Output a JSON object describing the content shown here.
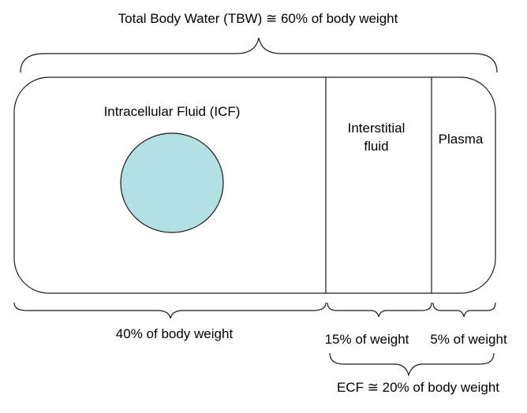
{
  "title": "Total Body Water (TBW) ≅ 60% of body weight",
  "compartments": {
    "icf": {
      "label": "Intracellular Fluid (ICF)",
      "weight_label": "40% of body weight"
    },
    "interstitial": {
      "label_line1": "Interstitial",
      "label_line2": "fluid",
      "weight_label": "15% of weight"
    },
    "plasma": {
      "label": "Plasma",
      "weight_label": "5% of weight"
    }
  },
  "ecf": {
    "label": "ECF ≅ 20% of body weight"
  },
  "colors": {
    "cell_fill": "#b3e0e3",
    "cell_stroke": "#1a1a1a",
    "line": "#1a1a1a"
  }
}
